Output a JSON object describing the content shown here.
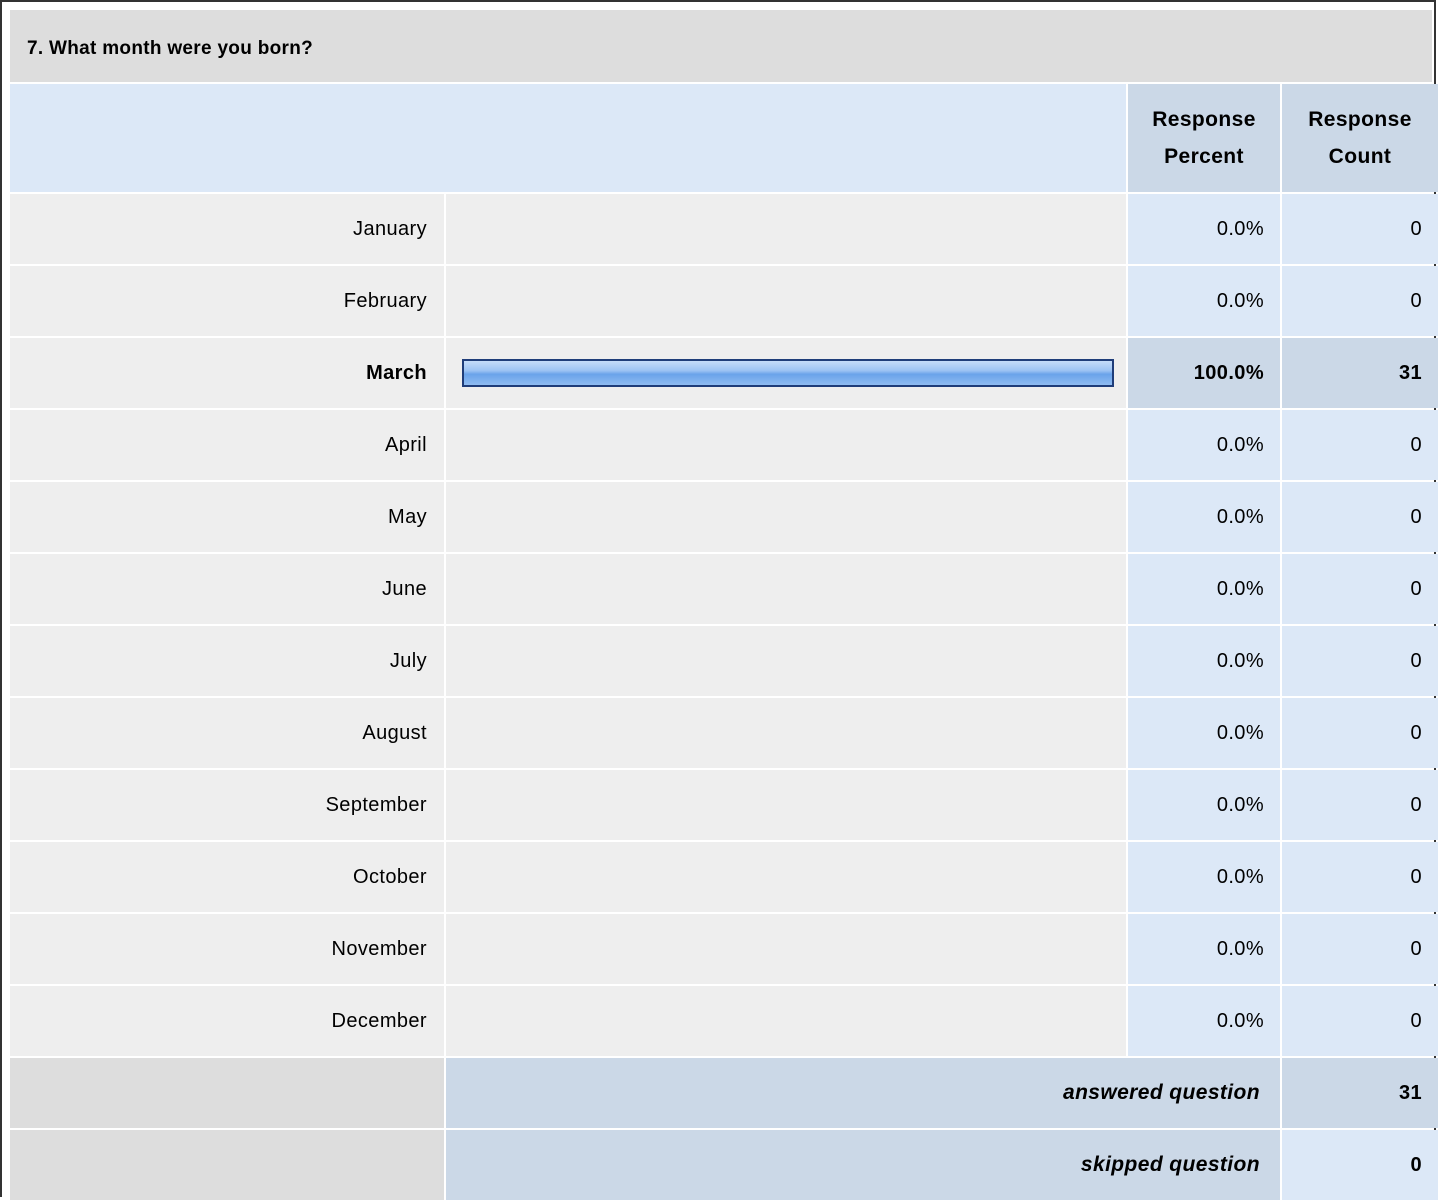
{
  "question": {
    "title": "7. What month were you born?"
  },
  "columns": {
    "percent": "Response Percent",
    "count": "Response Count"
  },
  "rows": [
    {
      "label": "January",
      "percent": "0.0%",
      "count": "0",
      "fraction": 0
    },
    {
      "label": "February",
      "percent": "0.0%",
      "count": "0",
      "fraction": 0
    },
    {
      "label": "March",
      "percent": "100.0%",
      "count": "31",
      "fraction": 1
    },
    {
      "label": "April",
      "percent": "0.0%",
      "count": "0",
      "fraction": 0
    },
    {
      "label": "May",
      "percent": "0.0%",
      "count": "0",
      "fraction": 0
    },
    {
      "label": "June",
      "percent": "0.0%",
      "count": "0",
      "fraction": 0
    },
    {
      "label": "July",
      "percent": "0.0%",
      "count": "0",
      "fraction": 0
    },
    {
      "label": "August",
      "percent": "0.0%",
      "count": "0",
      "fraction": 0
    },
    {
      "label": "September",
      "percent": "0.0%",
      "count": "0",
      "fraction": 0
    },
    {
      "label": "October",
      "percent": "0.0%",
      "count": "0",
      "fraction": 0
    },
    {
      "label": "November",
      "percent": "0.0%",
      "count": "0",
      "fraction": 0
    },
    {
      "label": "December",
      "percent": "0.0%",
      "count": "0",
      "fraction": 0
    }
  ],
  "summary": {
    "answered_label": "answered question",
    "answered_value": "31",
    "skipped_label": "skipped question",
    "skipped_value": "0"
  }
}
